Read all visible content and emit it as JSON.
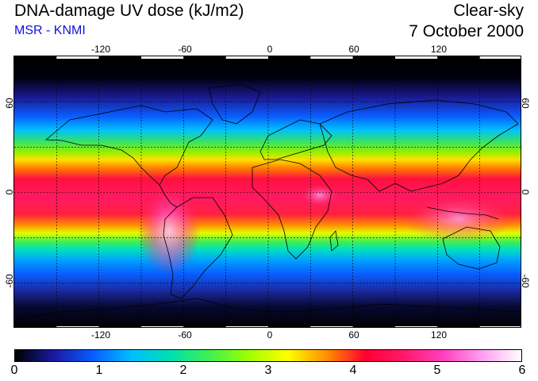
{
  "header": {
    "title": "DNA-damage UV dose (kJ/m2)",
    "subtitle": "MSR - KNMI",
    "sky": "Clear-sky",
    "date": "7 October 2000"
  },
  "map": {
    "lon_labels": [
      "-120",
      "-60",
      "0",
      "60",
      "120"
    ],
    "lat_labels": [
      "60",
      "0",
      "-60"
    ],
    "lon_range": [
      -180,
      180
    ],
    "lat_range": [
      -90,
      90
    ],
    "graticule_lon": [
      -150,
      -120,
      -90,
      -60,
      -30,
      0,
      30,
      60,
      90,
      120,
      150
    ],
    "graticule_lat": [
      -60,
      -30,
      0,
      30,
      60
    ]
  },
  "colorbar": {
    "labels": [
      "0",
      "1",
      "2",
      "3",
      "4",
      "5",
      "6"
    ],
    "range": [
      0,
      6
    ],
    "colors": [
      "#000000",
      "#1a1aa0",
      "#0a5cff",
      "#00c0ff",
      "#00e0b0",
      "#40f050",
      "#a0ff00",
      "#ffff00",
      "#ff9000",
      "#ff0030",
      "#ff1a6a",
      "#ff40c0",
      "#ffa0f0",
      "#ffffff"
    ]
  }
}
